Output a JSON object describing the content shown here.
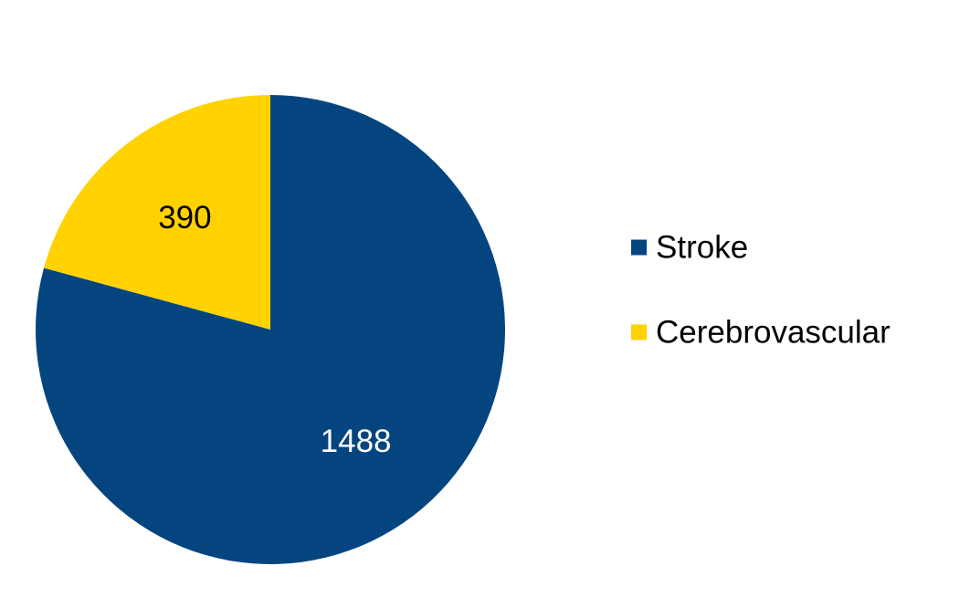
{
  "chart_data": {
    "type": "pie",
    "categories": [
      "Stroke",
      "Cerebrovascular"
    ],
    "values": [
      1488,
      390
    ],
    "colors": [
      "#05457f",
      "#ffd200"
    ],
    "label_colors": [
      "#ffffff",
      "#000000"
    ],
    "start_angle_deg": 0,
    "direction": "clockwise",
    "data_labels": [
      "1488",
      "390"
    ],
    "legend": {
      "position": "right",
      "entries": [
        "Stroke",
        "Cerebrovascular"
      ]
    }
  }
}
